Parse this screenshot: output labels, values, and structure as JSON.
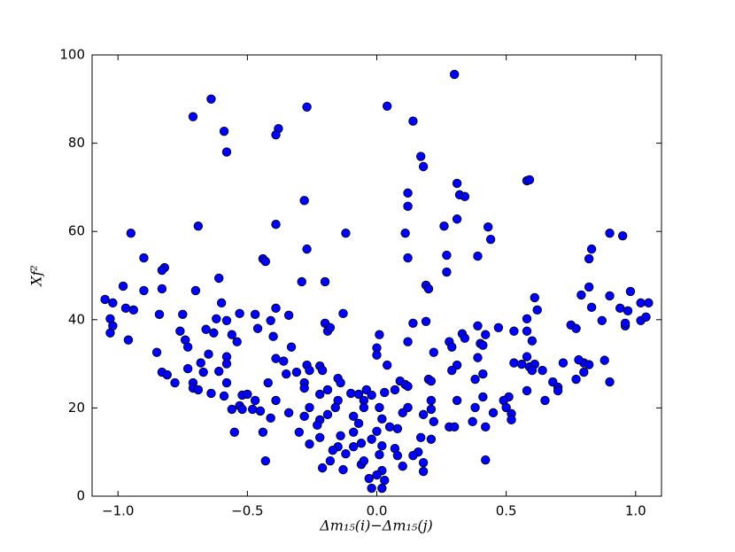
{
  "chart_data": {
    "type": "scatter",
    "x_label": "Δm₁₅(i)−Δm₁₅(j)",
    "y_label": "Xf²",
    "xlim": [
      -1.1,
      1.1
    ],
    "ylim": [
      0,
      100
    ],
    "xticks": [
      {
        "value": -1.0,
        "label": "−1.0"
      },
      {
        "value": -0.5,
        "label": "−0.5"
      },
      {
        "value": 0,
        "label": "0.0"
      },
      0.5,
      {
        "value": 1.0,
        "label": "1.0"
      }
    ],
    "yticks": [
      0,
      20,
      40,
      60,
      80,
      100
    ],
    "grid": false,
    "series": [
      {
        "color": "#0000ff",
        "edgecolor": "#000000",
        "x": [
          0.3,
          -0.64,
          -0.71,
          0.04,
          -0.27,
          0.14,
          -0.59,
          -0.38,
          -0.39,
          -0.58,
          0.17,
          0.18,
          0.58,
          0.59,
          0.31,
          0.12,
          0.32,
          0.34,
          -0.28,
          0.12,
          0.31,
          -0.69,
          -0.39,
          0.43,
          0.26,
          -0.95,
          -0.12,
          0.11,
          0.44,
          0.95,
          0.9,
          -0.27,
          0.83,
          -0.9,
          -0.44,
          -0.43,
          0.12,
          0.27,
          0.39,
          0.82,
          -0.82,
          -0.83,
          0.27,
          -0.29,
          -0.2,
          0.19,
          0.2,
          0.82,
          -0.98,
          -0.9,
          -0.83,
          -0.7,
          -0.61,
          0.61,
          0.79,
          0.9,
          0.98,
          -1.05,
          -1.02,
          -0.6,
          1.02,
          1.05,
          -0.97,
          -0.94,
          -0.39,
          0.62,
          0.83,
          0.94,
          0.97,
          -0.47,
          -0.84,
          -0.75,
          -0.53,
          -0.13,
          -0.34,
          -1.03,
          -0.62,
          -0.58,
          0.58,
          0.87,
          1.02,
          1.04,
          -0.41,
          -0.2,
          0.19,
          0.14,
          0.96,
          0.96,
          -1.02,
          0.39,
          0.47,
          0.75,
          0.77,
          0.58,
          -0.66,
          -0.19,
          -0.18,
          -0.46,
          0.53,
          0.42,
          -1.03,
          -0.76,
          -0.63,
          -0.56,
          0.01,
          0.33,
          -0.4,
          -0.96,
          -0.74,
          -0.54,
          0.34,
          0.28,
          0.12,
          0.6,
          0.4,
          0.41,
          -0.73,
          -0.33,
          0.0,
          0.29,
          0.22,
          -0.85,
          -0.65,
          -0.58,
          0.0,
          0.39,
          -0.39,
          0.88,
          0.58,
          0.8,
          0.82,
          -0.58,
          -0.68,
          -0.36,
          0.78,
          0.72,
          0.53,
          0.56,
          0.59,
          0.61,
          0.31,
          0.04,
          -0.27,
          -0.22,
          -0.73,
          -0.83,
          -0.81,
          -0.67,
          -0.61,
          0.6,
          0.64,
          0.8,
          0.29,
          -0.26,
          -0.21,
          -0.31,
          -0.35,
          0.41,
          -0.15,
          0.09,
          0.2,
          0.21,
          -0.78,
          -0.71,
          -0.58,
          -0.42,
          -0.28,
          -0.14,
          0.11,
          0.12,
          0.38,
          0.68,
          0.77,
          0.9,
          0.7,
          -0.71,
          -0.69,
          -0.28,
          -0.19,
          0.07,
          -0.04,
          0.58,
          0.7,
          -0.64,
          -0.1,
          0.03,
          -0.59,
          -0.52,
          -0.5,
          -0.22,
          -0.07,
          -0.02,
          0.51,
          0.41,
          0.65,
          0.49,
          -0.15,
          -0.05,
          0.21,
          0.31,
          -0.47,
          -0.39,
          -0.56,
          -0.53,
          -0.52,
          -0.48,
          -0.45,
          -0.26,
          -0.16,
          -0.05,
          0.01,
          0.12,
          0.21,
          0.38,
          0.5,
          0.45,
          0.52,
          -0.34,
          -0.28,
          -0.19,
          -0.09,
          0.1,
          0.18,
          -0.41,
          -0.22,
          -0.07,
          0.02,
          0.22,
          0.37,
          0.52,
          -0.23,
          0.05,
          0.08,
          0.28,
          0.3,
          0.42,
          -0.55,
          -0.44,
          -0.3,
          -0.09,
          0.0,
          -0.14,
          -0.22,
          0.17,
          0.21,
          -0.02,
          -0.06,
          -0.26,
          -0.15,
          -0.09,
          0.02,
          0.07,
          -0.17,
          0.16,
          -0.12,
          0.01,
          0.08,
          0.14,
          -0.43,
          -0.18,
          0.42,
          -0.06,
          0.1,
          0.18,
          -0.21,
          -0.13,
          0.02,
          0.18,
          0.0,
          -0.03,
          0.03,
          -0.02,
          0.02,
          -0.05
        ],
        "values": [
          95.6,
          90,
          86,
          88.4,
          88.2,
          85,
          82.7,
          83.3,
          81.9,
          78,
          77,
          74.7,
          71.5,
          71.7,
          70.9,
          68.7,
          68.3,
          67.9,
          67,
          65.7,
          62.8,
          61.2,
          61.6,
          61,
          61.2,
          59.6,
          59.6,
          59.6,
          58.2,
          59,
          59.6,
          56,
          56,
          54,
          53.8,
          53.2,
          54,
          54.6,
          54.4,
          53.8,
          51.8,
          51.2,
          50.8,
          48.6,
          48.6,
          47.8,
          47,
          47.4,
          47.6,
          46.6,
          47,
          46.6,
          49.4,
          45,
          45.6,
          45.4,
          46.4,
          44.6,
          43.8,
          43.8,
          43.8,
          43.8,
          42.6,
          42.2,
          42.6,
          42.2,
          42.8,
          42.6,
          42,
          41.2,
          41.2,
          41.2,
          41.4,
          41.4,
          41,
          40.2,
          40.2,
          39.8,
          40.2,
          39.8,
          39.8,
          40.6,
          39.8,
          39.2,
          39.6,
          39.2,
          38.6,
          39.2,
          38.6,
          38.6,
          38.2,
          38.8,
          38,
          37.4,
          37.8,
          37.4,
          38.2,
          38,
          37.4,
          36.6,
          37,
          37.4,
          37,
          36.6,
          36.6,
          36.8,
          36.2,
          35.4,
          35.4,
          35,
          35.8,
          35,
          35,
          35.2,
          34.6,
          34.2,
          33.8,
          33.8,
          33.6,
          33.8,
          32.6,
          32.6,
          32.2,
          31.6,
          32,
          31.4,
          31.2,
          30.8,
          31.6,
          30.2,
          29.8,
          30,
          30.2,
          30.6,
          30.9,
          30.2,
          30.2,
          29.9,
          29.3,
          29.9,
          29.7,
          29.7,
          29.7,
          29.5,
          28.9,
          28.1,
          27.5,
          28.1,
          28.3,
          28.5,
          28.5,
          28.1,
          28.5,
          28.5,
          28.5,
          28.1,
          27.7,
          27.7,
          26.7,
          26.1,
          26.5,
          26.1,
          25.7,
          25.7,
          25.7,
          25.7,
          25.7,
          25.7,
          25.3,
          24.9,
          26.5,
          25.9,
          26.5,
          25.9,
          24.7,
          24.5,
          24.1,
          24.5,
          24.1,
          24.1,
          24.1,
          23.9,
          23.9,
          23.3,
          23.3,
          23.5,
          22.7,
          22.9,
          23.1,
          23.1,
          23.1,
          22.9,
          22.5,
          22.5,
          21.7,
          21.7,
          21.7,
          21.7,
          21.7,
          21.7,
          21.7,
          21.7,
          19.7,
          20.5,
          19.7,
          19.7,
          19.3,
          20.1,
          20.1,
          20.1,
          20.1,
          20.1,
          19.7,
          20.1,
          20.1,
          18.9,
          18.7,
          18.9,
          18.1,
          18.5,
          18.1,
          18.9,
          18.5,
          17.7,
          17.3,
          16.5,
          17.5,
          16.9,
          16.9,
          17.3,
          16.1,
          15.7,
          15.3,
          15.7,
          15.7,
          15.7,
          14.5,
          14.5,
          14.5,
          14.5,
          14.7,
          13.7,
          13.3,
          13.3,
          12.9,
          12.9,
          12,
          11.8,
          11.2,
          11.2,
          11.4,
          10.8,
          10.4,
          10,
          9.6,
          9.4,
          9.2,
          9.2,
          8,
          8,
          8.2,
          7.2,
          6.8,
          7.6,
          6.4,
          6,
          5.8,
          5.6,
          4.8,
          4,
          3.6,
          1.8,
          1.8,
          8
        ]
      }
    ]
  }
}
